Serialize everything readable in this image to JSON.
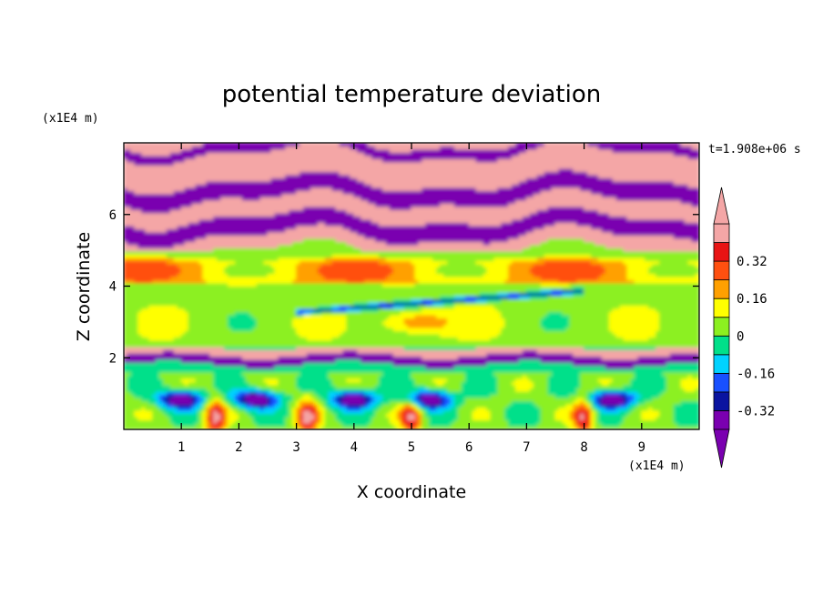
{
  "chart_data": {
    "type": "heatmap",
    "title": "potential temperature deviation",
    "xlabel": "X coordinate",
    "ylabel": "Z coordinate",
    "x_unit": "(x1E4 m)",
    "y_unit": "(x1E4 m)",
    "time_label": "t=1.908e+06 s",
    "xlim": [
      0,
      10
    ],
    "ylim": [
      0,
      8
    ],
    "x_ticks": [
      1,
      2,
      3,
      4,
      5,
      6,
      7,
      8,
      9
    ],
    "x_tick_labels": [
      "1",
      "2",
      "3",
      "4",
      "5",
      "6",
      "7",
      "8",
      "9"
    ],
    "y_ticks": [
      2,
      4,
      6
    ],
    "y_tick_labels": [
      "2",
      "4",
      "6"
    ],
    "colorbar": {
      "levels": [
        -0.4,
        -0.32,
        -0.24,
        -0.16,
        -0.08,
        0,
        0.08,
        0.16,
        0.24,
        0.32,
        0.4
      ],
      "colors": [
        "#7a00b0",
        "#0a14a0",
        "#1850ff",
        "#00d2ff",
        "#00e08a",
        "#8cf020",
        "#ffff00",
        "#ffa000",
        "#ff5010",
        "#e81414",
        "#f4a6a6"
      ],
      "under_color": "#7a00b0",
      "over_color": "#f4a6a6",
      "tick_labels": [
        "0.32",
        "0.16",
        "0",
        "-0.16",
        "-0.32"
      ],
      "tick_values": [
        0.32,
        0.16,
        0,
        -0.16,
        -0.32
      ]
    },
    "structure": {
      "upper_bands": [
        {
          "from": 7.7,
          "to": 8.0,
          "sign": "negative"
        },
        {
          "from": 6.9,
          "to": 7.7,
          "sign": "positive"
        },
        {
          "from": 6.4,
          "to": 6.9,
          "sign": "negative"
        },
        {
          "from": 5.9,
          "to": 6.4,
          "sign": "positive"
        },
        {
          "from": 5.4,
          "to": 5.9,
          "sign": "negative"
        },
        {
          "from": 5.0,
          "to": 5.4,
          "sign": "positive"
        }
      ],
      "lower_eddies_x": [
        1.0,
        2.3,
        4.0,
        5.3,
        8.5
      ],
      "positive_plumes_x": [
        1.6,
        3.2,
        5.0,
        8.0
      ]
    }
  }
}
